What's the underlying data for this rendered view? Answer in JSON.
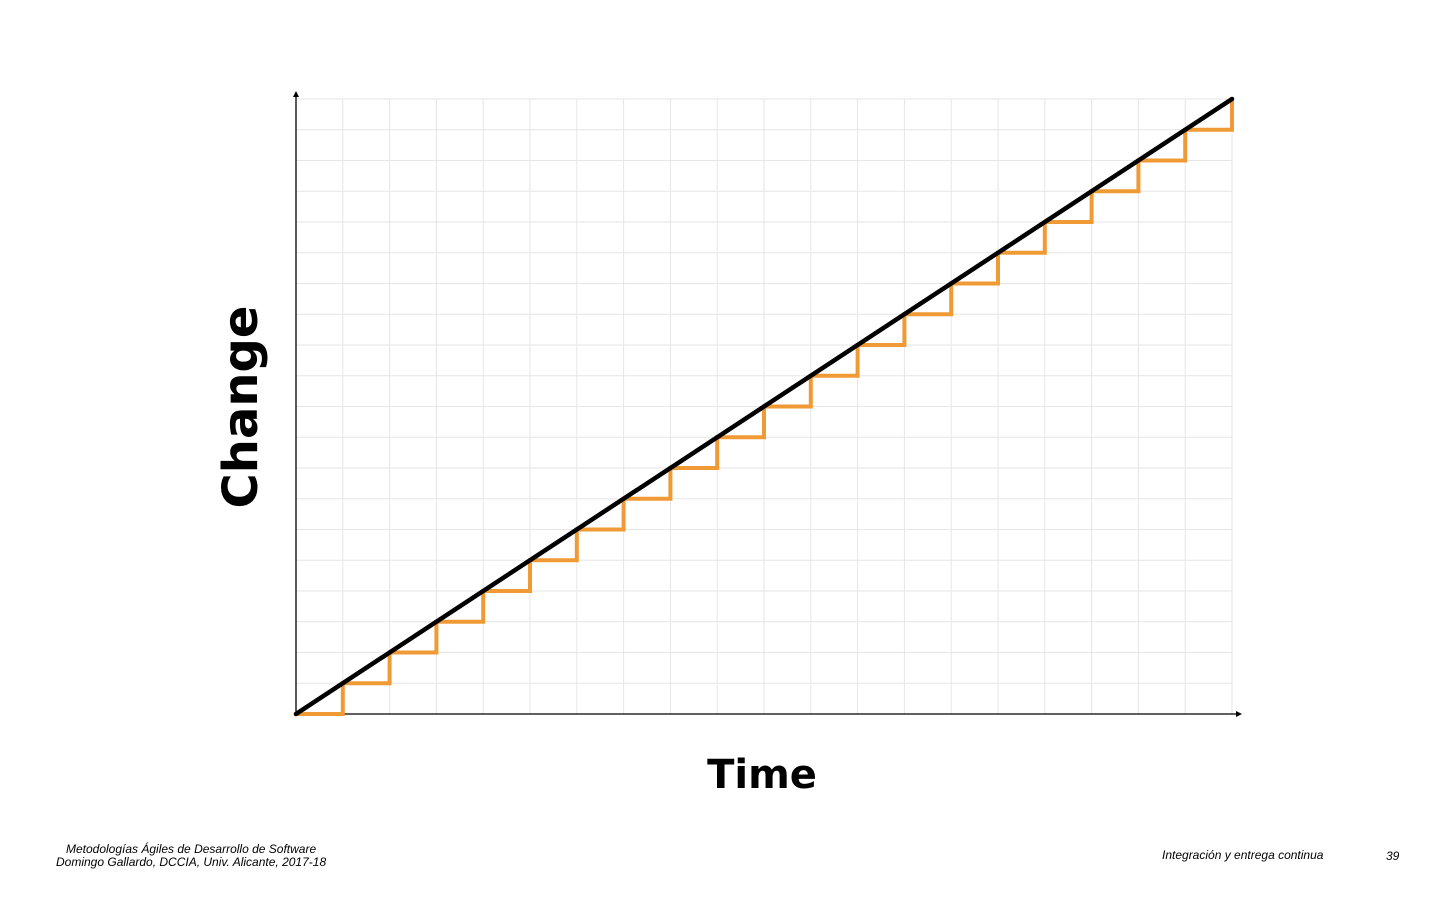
{
  "chart_data": {
    "type": "line",
    "xlabel": "Time",
    "ylabel": "Change",
    "xlim": [
      0,
      20
    ],
    "ylim": [
      0,
      20
    ],
    "grid": true,
    "colors": {
      "grid": "#e6e6e6",
      "axis": "#000000",
      "trend": "#000000",
      "steps": "#f09a36"
    },
    "series": [
      {
        "kind": "trend",
        "x": [
          0,
          20
        ],
        "y": [
          0,
          20
        ]
      },
      {
        "kind": "steps",
        "x": [
          0,
          1,
          1,
          2,
          2,
          3,
          3,
          4,
          4,
          5,
          5,
          6,
          6,
          7,
          7,
          8,
          8,
          9,
          9,
          10,
          10,
          11,
          11,
          12,
          12,
          13,
          13,
          14,
          14,
          15,
          15,
          16,
          16,
          17,
          17,
          18,
          18,
          19,
          19,
          20,
          20
        ],
        "y": [
          0,
          0,
          1,
          1,
          2,
          2,
          3,
          3,
          4,
          4,
          5,
          5,
          6,
          6,
          7,
          7,
          8,
          8,
          9,
          9,
          10,
          10,
          11,
          11,
          12,
          12,
          13,
          13,
          14,
          14,
          15,
          15,
          16,
          16,
          17,
          17,
          18,
          18,
          19,
          19,
          20
        ]
      }
    ]
  },
  "footer": {
    "course": "Metodologías Ágiles de Desarrollo de Software",
    "author": "Domingo Gallardo, DCCIA, Univ. Alicante, 2017-18",
    "title": "Integración y entrega continua",
    "page": "39"
  }
}
